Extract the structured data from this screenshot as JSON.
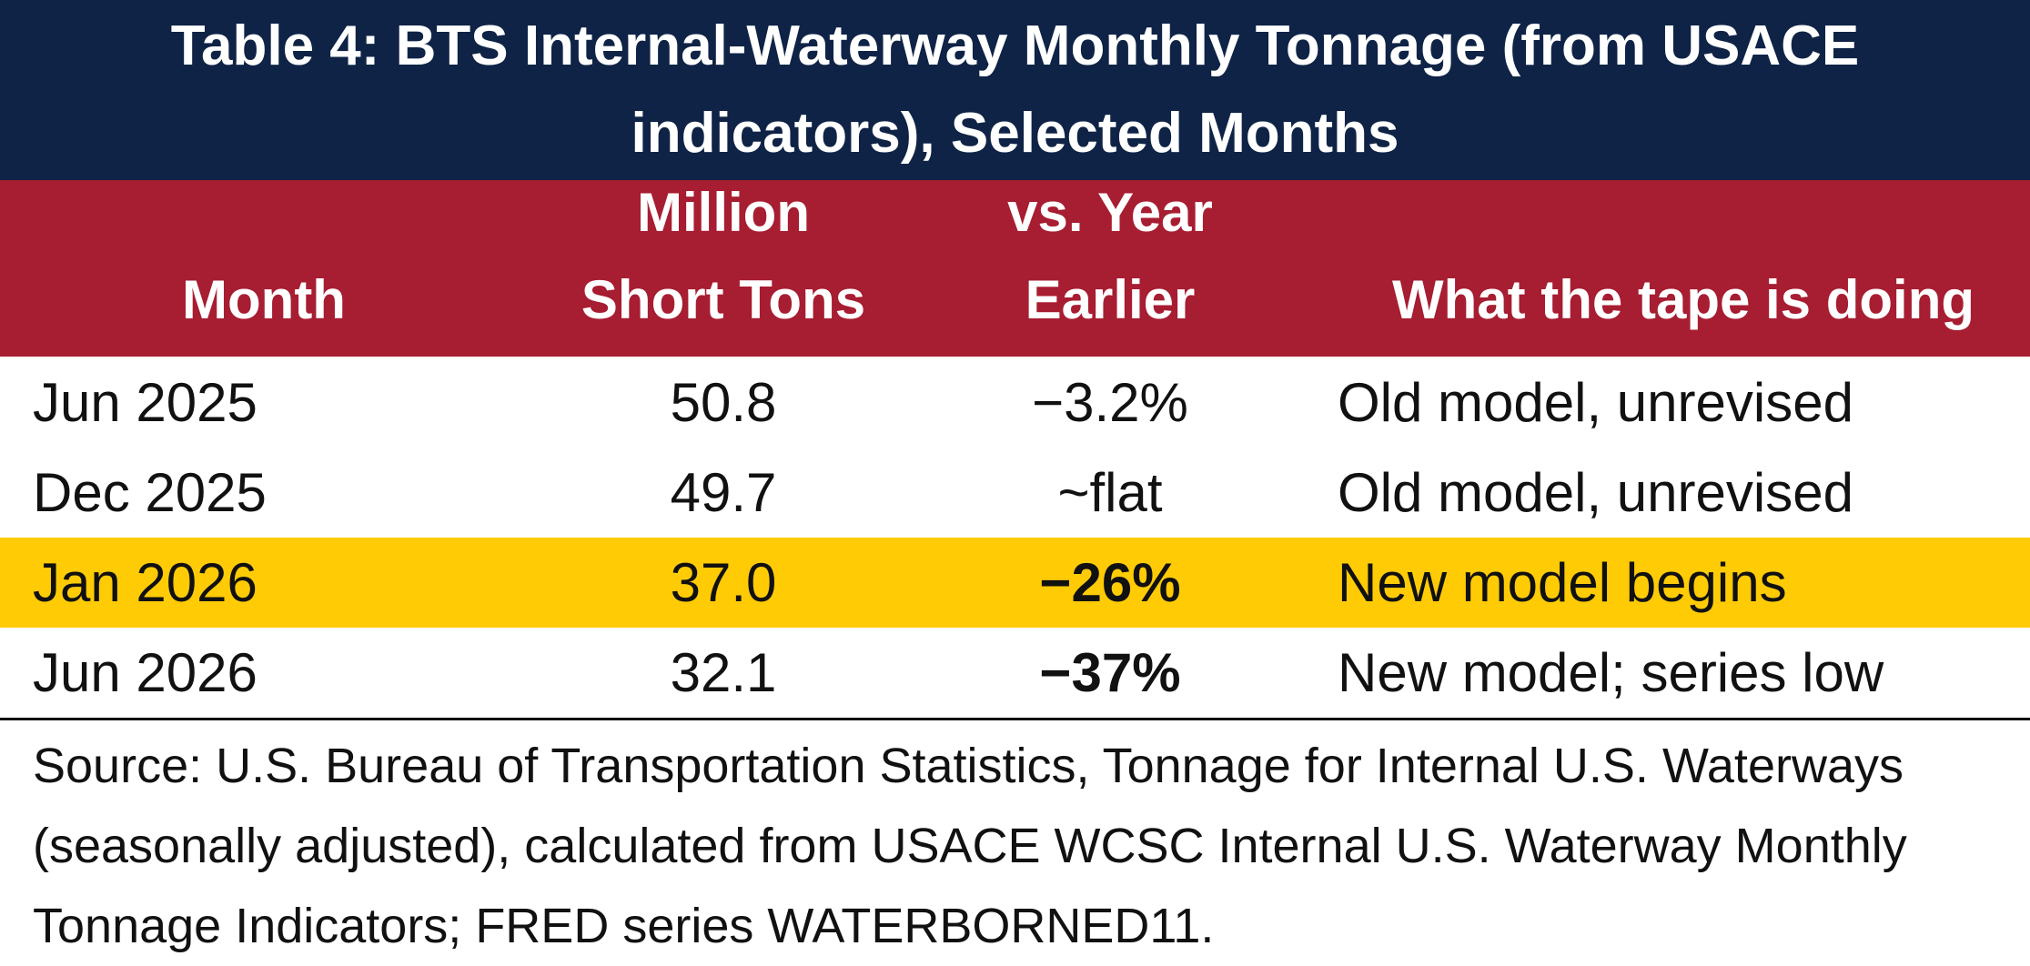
{
  "title": "Table 4: BTS Internal-Waterway Monthly Tonnage (from USACE indicators), Selected Months",
  "columns": {
    "month": "Month",
    "tons_line1": "Million",
    "tons_line2": "Short Tons",
    "yoy_line1": "vs. Year",
    "yoy_line2": "Earlier",
    "tape": "What the tape is doing"
  },
  "rows": [
    {
      "month": "Jun 2025",
      "tons": "50.8",
      "yoy": "−3.2%",
      "tape": "Old model, unrevised"
    },
    {
      "month": "Dec 2025",
      "tons": "49.7",
      "yoy": "~flat",
      "tape": "Old model, unrevised"
    },
    {
      "month": "Jan 2026",
      "tons": "37.0",
      "yoy": "−26%",
      "tape": "New model begins"
    },
    {
      "month": "Jun 2026",
      "tons": "32.1",
      "yoy": "−37%",
      "tape": "New model; series low"
    }
  ],
  "source": "Source: U.S. Bureau of Transportation Statistics, Tonnage for Internal U.S. Waterways (seasonally adjusted), calculated from USACE WCSC Internal U.S. Waterway Monthly Tonnage Indicators; FRED series WATERBORNED11.",
  "colors": {
    "title_bg": "#0f2346",
    "header_bg": "#a71d31",
    "highlight_row": "#ffcb05"
  }
}
